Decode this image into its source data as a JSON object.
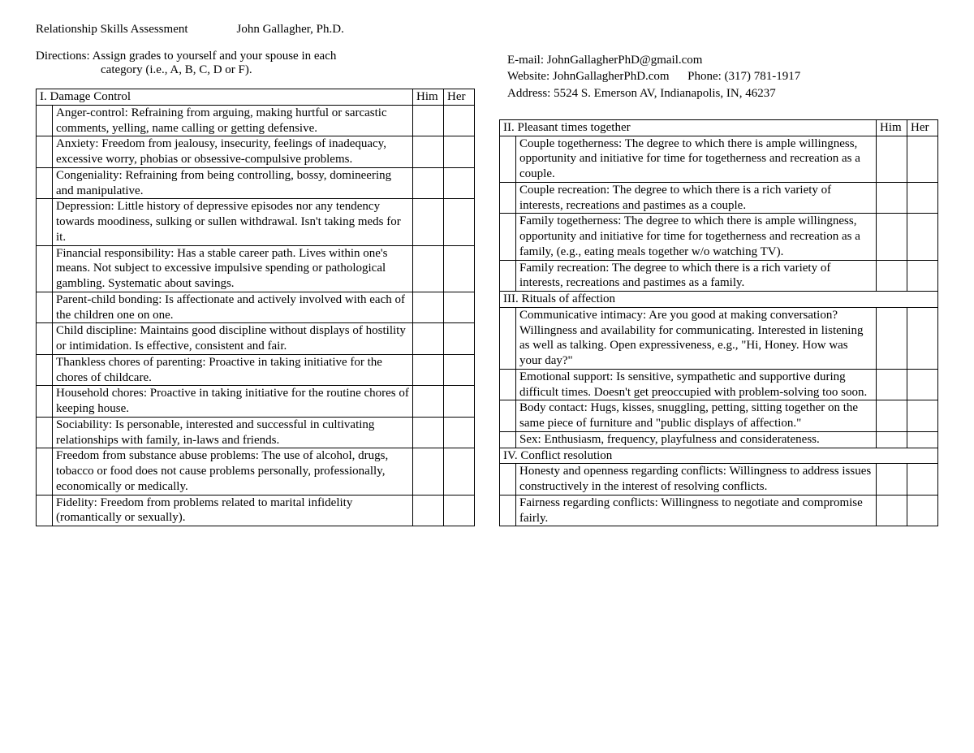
{
  "title": "Relationship Skills Assessment",
  "author": "John Gallagher, Ph.D.",
  "directions_label": "Directions:  ",
  "directions_line1": "Assign grades to yourself and your spouse in each",
  "directions_line2": "category (i.e., A, B, C, D or F).",
  "contact": {
    "email_label": "E-mail: ",
    "email": "JohnGallagherPhD@gmail.com",
    "website_label": "Website: ",
    "website": "JohnGallagherPhD.com",
    "phone_label": "Phone: ",
    "phone": "(317) 781-1917",
    "address_label": "Address: ",
    "address": "5524 S. Emerson AV, Indianapolis, IN, 46237"
  },
  "col_him": "Him",
  "col_her": "Her",
  "sections": {
    "s1": {
      "title": "I.  Damage Control",
      "items": [
        "Anger-control:  Refraining from arguing, making hurtful or sarcastic comments, yelling, name calling or getting defensive.",
        "Anxiety:  Freedom from jealousy, insecurity, feelings of inadequacy, excessive worry,  phobias or obsessive-compulsive problems.",
        "Congeniality: Refraining from being controlling, bossy, domineering and manipulative.",
        "Depression:  Little history of depressive episodes nor any tendency towards moodiness, sulking or sullen withdrawal.  Isn't taking meds for it.",
        "Financial responsibility: Has a stable career path.  Lives within one's means.  Not subject to excessive impulsive spending or pathological gambling.  Systematic about savings.",
        "Parent-child bonding:  Is affectionate and actively involved with each of the children one on one.",
        "Child discipline:  Maintains good discipline without displays of hostility or intimidation.  Is effective, consistent and fair.",
        "Thankless chores of parenting:  Proactive in taking initiative for the chores of childcare.",
        "Household chores:  Proactive in taking initiative for the routine chores of keeping house.",
        "Sociability: Is personable, interested and successful in cultivating relationships with family, in-laws and friends.",
        "Freedom from substance abuse problems:  The use of alcohol, drugs, tobacco or food does not cause problems personally, professionally, economically or medically.",
        "Fidelity: Freedom from problems related to marital infidelity (romantically or sexually)."
      ]
    },
    "s2": {
      "title": "II.  Pleasant times together",
      "items": [
        "Couple togetherness: The degree to which there is ample willingness, opportunity and initiative for time for togetherness and recreation as a couple.",
        "Couple recreation: The degree to which there is a rich variety of interests, recreations and pastimes as a couple.",
        "Family togetherness: The degree to which there is ample willingness, opportunity and initiative for time for togetherness and recreation as a family, (e.g., eating meals together w/o watching TV).",
        "Family recreation: The degree to which there is a rich variety of interests, recreations and pastimes as a family."
      ]
    },
    "s3": {
      "title": "III.  Rituals of affection",
      "items": [
        "Communicative intimacy:  Are you good at making conversation?  Willingness and availability for communicating.  Interested in listening as well as talking.  Open expressiveness, e.g., \"Hi, Honey.  How was your day?\"",
        "Emotional support:  Is sensitive, sympathetic and supportive during difficult times.  Doesn't  get preoccupied with problem-solving too soon.",
        "Body contact:  Hugs, kisses, snuggling, petting, sitting together on the same piece of furniture and \"public displays of affection.\"",
        "Sex:  Enthusiasm, frequency, playfulness and considerateness."
      ]
    },
    "s4": {
      "title": "IV.  Conflict resolution",
      "items": [
        "Honesty and openness regarding conflicts:  Willingness to address issues constructively in the interest of resolving conflicts.",
        "Fairness regarding conflicts: Willingness to negotiate and compromise fairly."
      ]
    }
  }
}
